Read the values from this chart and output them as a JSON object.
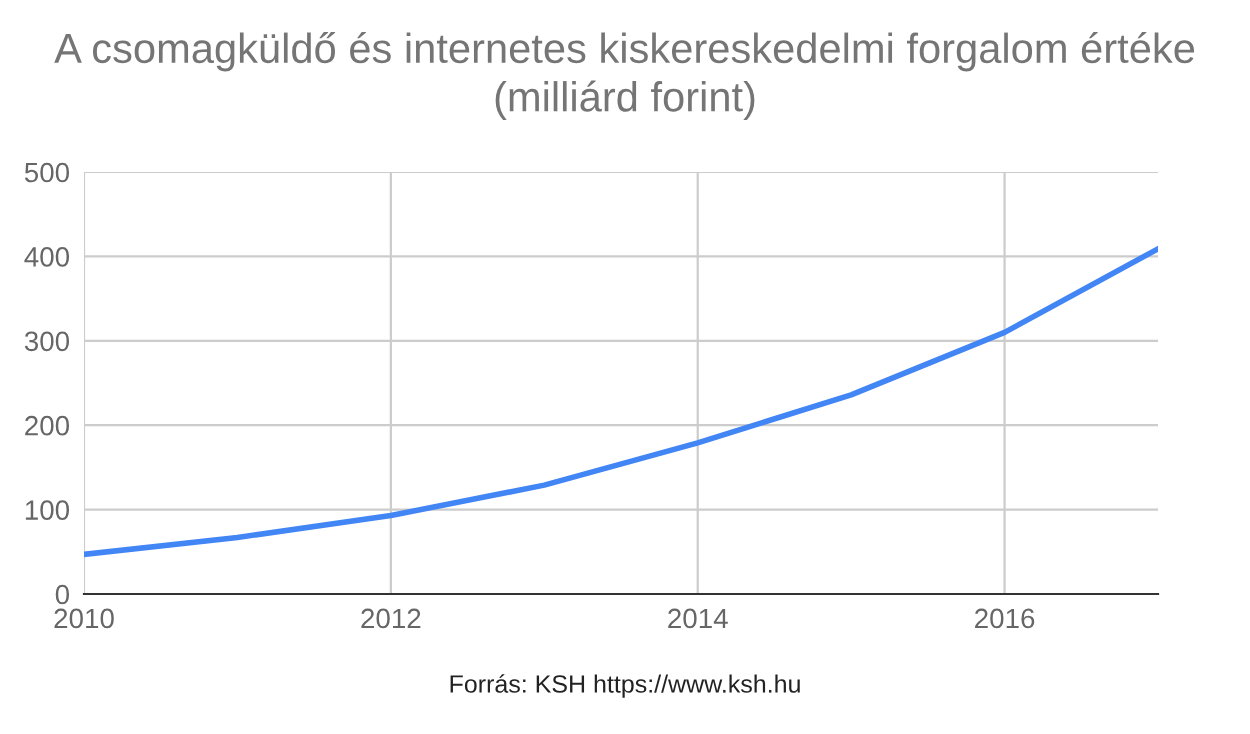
{
  "chart_data": {
    "type": "line",
    "title": "A csomagküldő és internetes kiskereskedelmi forgalom értéke\n(milliárd forint)",
    "x": [
      2010,
      2011,
      2012,
      2013,
      2014,
      2015,
      2016,
      2017
    ],
    "series": [
      {
        "color": "#4285f4",
        "values": [
          47,
          67,
          93,
          129,
          179,
          236,
          310,
          409
        ]
      }
    ],
    "xlim": [
      2010,
      2017
    ],
    "xticks": [
      2010,
      2012,
      2014,
      2016
    ],
    "ylim": [
      0,
      500
    ],
    "yticks": [
      0,
      100,
      200,
      300,
      400,
      500
    ],
    "grid": true,
    "marker": "none",
    "line_style": "solid",
    "annotations": [
      "Forrás: KSH https://www.ksh.hu"
    ]
  }
}
